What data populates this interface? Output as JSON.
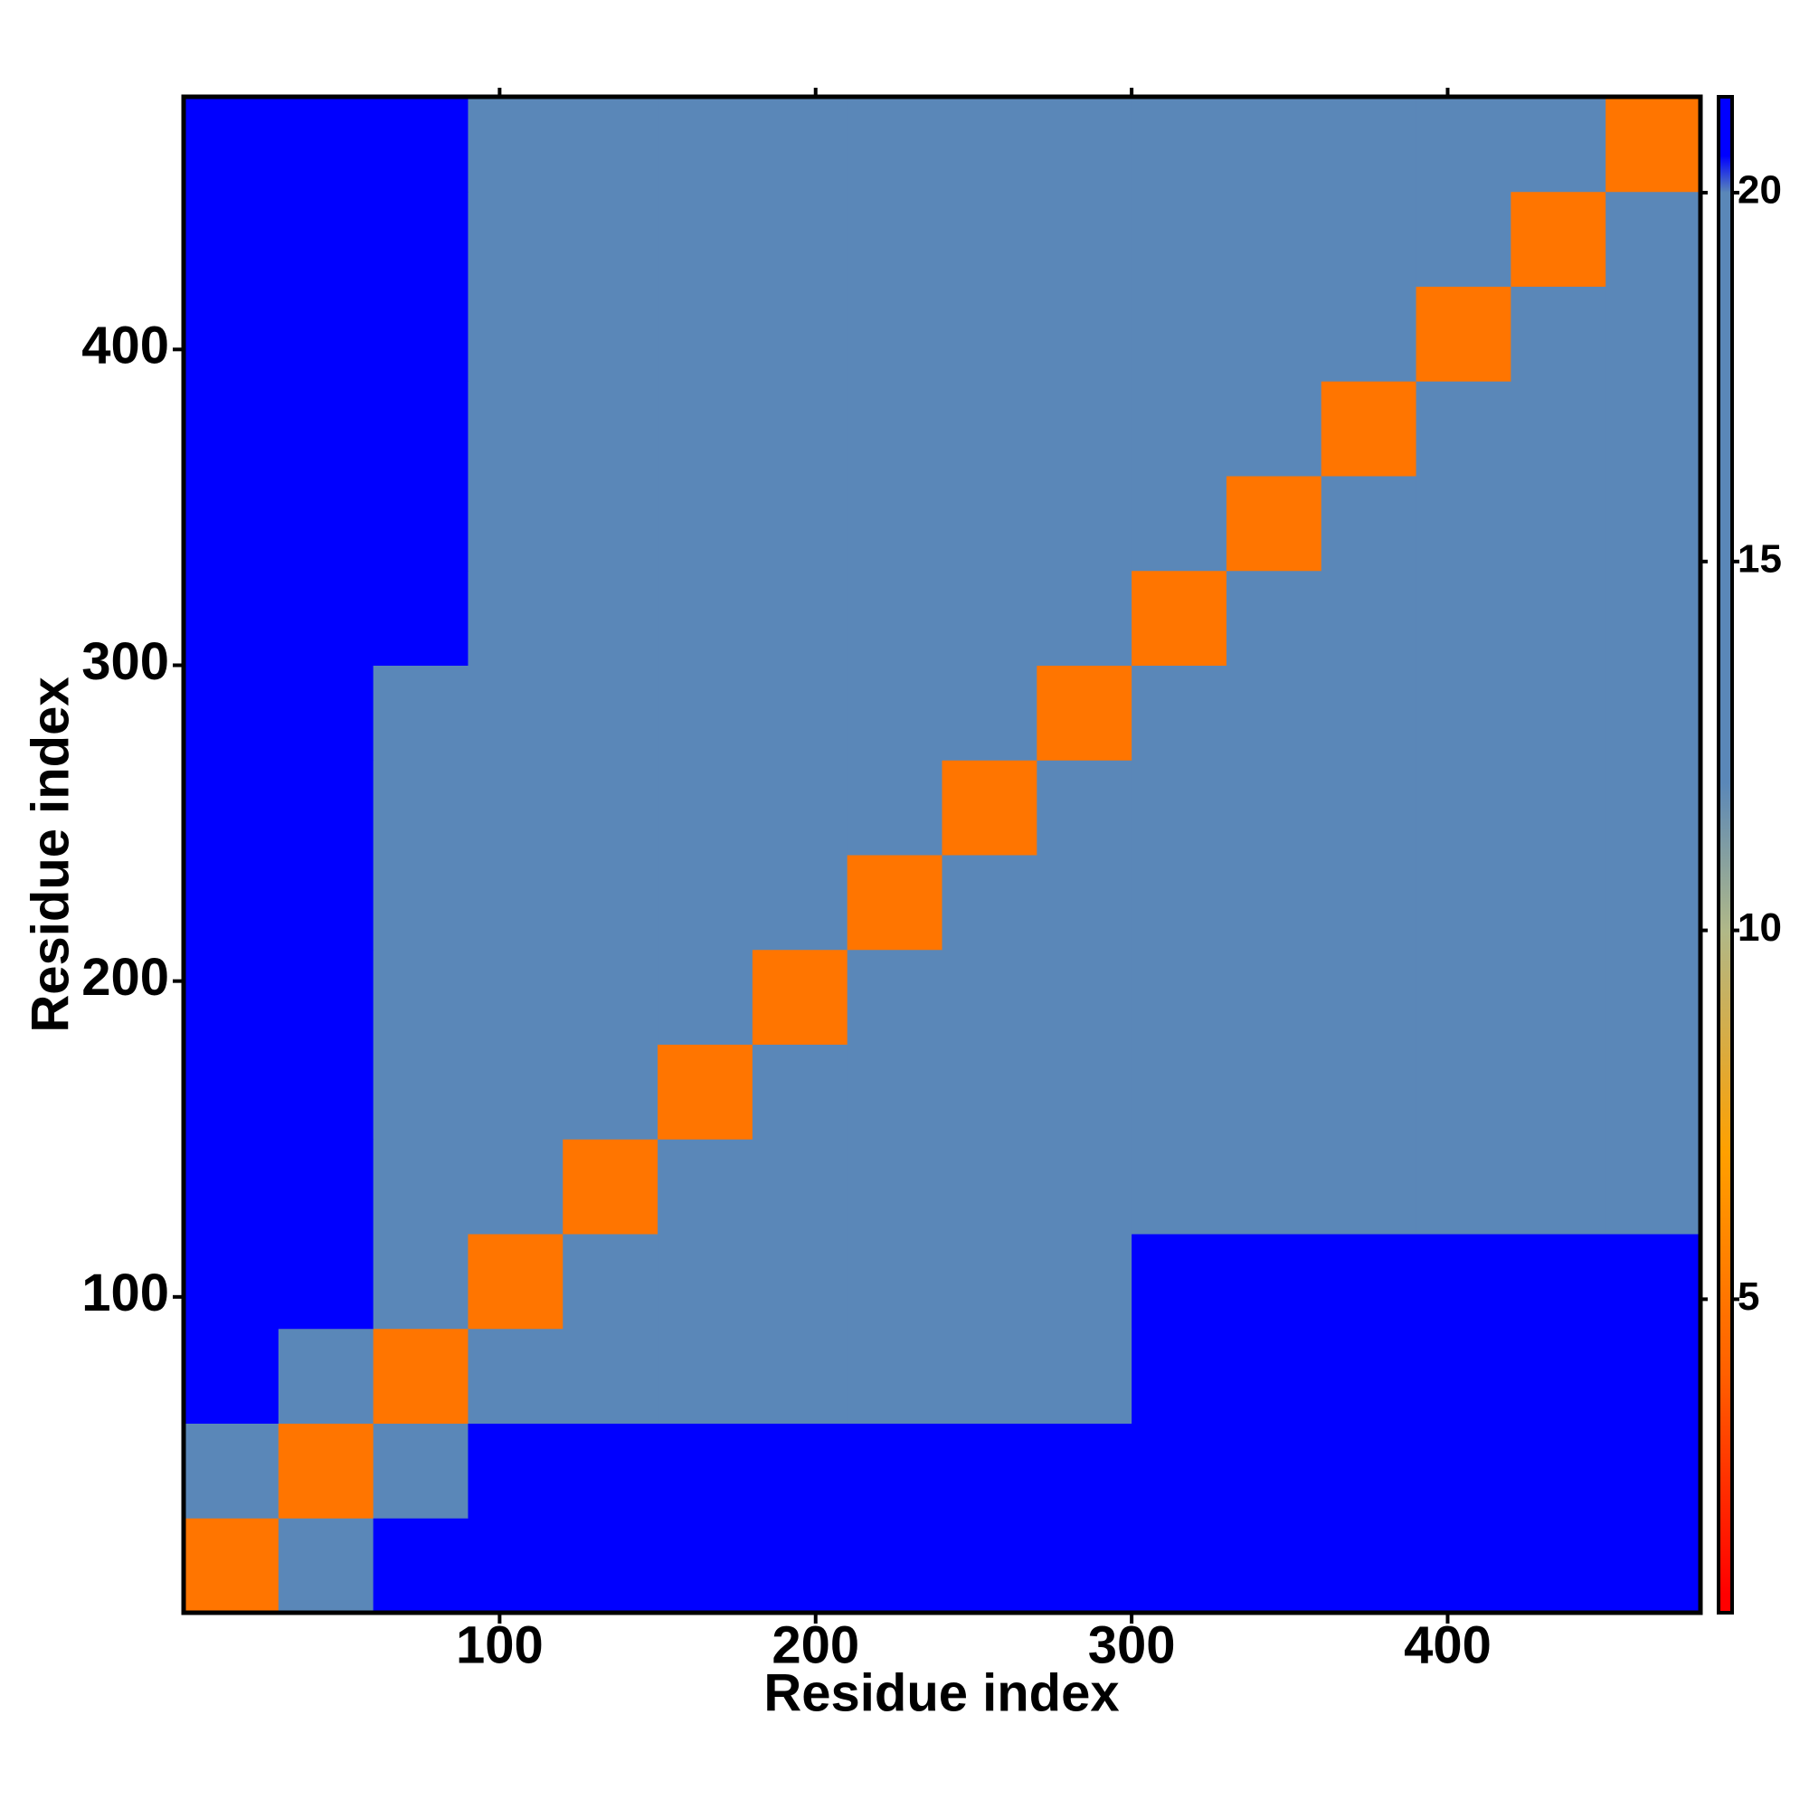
{
  "chart_data": {
    "type": "heatmap",
    "x_label": "Residue index",
    "y_label": "Residue index",
    "xlim": [
      0,
      480
    ],
    "ylim": [
      0,
      480
    ],
    "xticks": [
      100,
      200,
      300,
      400
    ],
    "yticks": [
      100,
      200,
      300,
      400
    ],
    "xbins": [
      0,
      30,
      60,
      90,
      120,
      150,
      180,
      210,
      240,
      270,
      300,
      330,
      360,
      390,
      420,
      450,
      480
    ],
    "ybins": [
      0,
      30,
      60,
      90,
      120,
      150,
      180,
      210,
      240,
      270,
      300,
      330,
      360,
      390,
      420,
      450,
      480
    ],
    "z": [
      [
        5,
        20,
        21,
        21,
        21,
        21,
        21,
        21,
        21,
        21,
        21,
        21,
        21,
        21,
        21,
        21
      ],
      [
        20,
        5,
        20,
        21,
        21,
        21,
        21,
        21,
        21,
        21,
        21,
        21,
        21,
        21,
        21,
        21
      ],
      [
        21,
        20,
        5,
        20,
        20,
        19,
        19,
        19,
        19,
        20,
        21,
        21,
        21,
        21,
        21,
        21
      ],
      [
        21,
        21,
        20,
        5,
        12,
        15,
        15,
        15,
        15,
        15,
        21,
        21,
        21,
        21,
        21,
        21
      ],
      [
        21,
        21,
        19,
        12,
        5,
        12,
        14,
        15,
        15,
        15,
        20,
        20,
        20,
        20,
        20,
        20
      ],
      [
        21,
        21,
        18,
        15,
        12,
        5,
        12,
        14,
        15,
        15,
        18,
        18,
        18,
        18,
        18,
        18
      ],
      [
        21,
        21,
        18,
        14,
        14,
        12,
        5,
        12,
        14,
        15,
        18,
        17,
        18,
        18,
        18,
        18
      ],
      [
        21,
        21,
        18,
        15,
        15,
        14,
        12,
        5,
        12,
        14,
        18,
        17,
        18,
        18,
        17,
        18
      ],
      [
        21,
        21,
        18,
        15,
        15,
        14,
        14,
        12,
        5,
        12,
        18,
        18,
        18,
        18,
        18,
        18
      ],
      [
        21,
        21,
        19,
        15,
        15,
        14,
        15,
        14,
        12,
        5,
        15,
        17,
        17,
        18,
        17,
        19
      ],
      [
        21,
        21,
        21,
        18,
        18,
        18,
        18,
        18,
        15,
        15,
        5,
        12,
        15,
        15,
        14,
        15
      ],
      [
        21,
        21,
        21,
        18,
        18,
        18,
        18,
        18,
        18,
        17,
        12,
        5,
        12,
        14,
        15,
        15
      ],
      [
        21,
        21,
        21,
        18,
        18,
        17,
        18,
        18,
        18,
        17,
        14,
        12,
        5,
        12,
        14,
        15
      ],
      [
        21,
        21,
        21,
        19,
        18,
        18,
        18,
        19,
        18,
        17,
        15,
        14,
        12,
        5,
        12,
        14
      ],
      [
        21,
        21,
        21,
        19,
        18,
        19,
        18,
        18,
        18,
        18,
        14,
        15,
        14,
        12,
        5,
        12
      ],
      [
        21,
        21,
        21,
        20,
        19,
        18,
        18,
        18,
        19,
        17,
        15,
        15,
        15,
        14,
        12,
        5
      ]
    ],
    "colorscale": [
      {
        "value": 1,
        "color": "#ff0000"
      },
      {
        "value": 4,
        "color": "#ff6000"
      },
      {
        "value": 7,
        "color": "#ffa000"
      },
      {
        "value": 10,
        "color": "#b0b888"
      },
      {
        "value": 12,
        "color": "#5a87b8"
      },
      {
        "value": 20,
        "color": "#5a87b8"
      },
      {
        "value": 20.5,
        "color": "#0000ff"
      }
    ],
    "colorbar_lim": [
      0.75,
      21.3
    ],
    "colorbar_ticks": [
      5,
      10,
      15,
      20
    ]
  }
}
